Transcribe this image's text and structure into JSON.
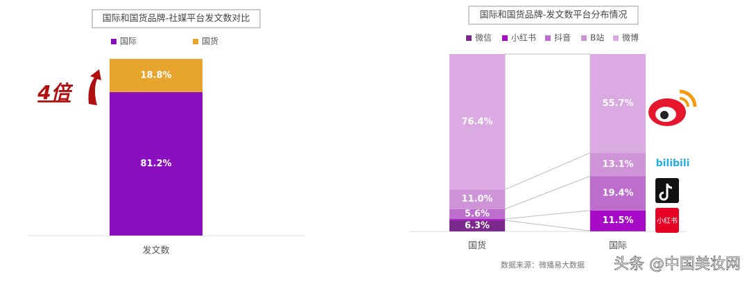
{
  "chart_data": [
    {
      "type": "stacked-bar",
      "title": "国际和国货品牌-社媒平台发文数对比",
      "categories": [
        "发文数"
      ],
      "series": [
        {
          "name": "国际",
          "color": "#8a0fbf",
          "values": [
            81.2
          ],
          "value_labels": [
            "81.2%"
          ]
        },
        {
          "name": "国货",
          "color": "#e8a52e",
          "values": [
            18.8
          ],
          "value_labels": [
            "18.8%"
          ]
        }
      ],
      "ylim": [
        0,
        100
      ],
      "annotation": "4倍"
    },
    {
      "type": "stacked-bar",
      "title": "国际和国货品牌-发文数平台分布情况",
      "categories": [
        "国货",
        "国际"
      ],
      "series": [
        {
          "name": "微信",
          "color": "#7b2a8b",
          "values": [
            6.3,
            0.3
          ],
          "value_labels": [
            "6.3%",
            null
          ]
        },
        {
          "name": "小红书",
          "color": "#a80bc8",
          "values": [
            0.7,
            11.5
          ],
          "value_labels": [
            null,
            "11.5%"
          ]
        },
        {
          "name": "抖音",
          "color": "#bd6dcc",
          "values": [
            5.6,
            19.4
          ],
          "value_labels": [
            "5.6%",
            "19.4%"
          ]
        },
        {
          "name": "B站",
          "color": "#cf94d8",
          "values": [
            11.0,
            13.1
          ],
          "value_labels": [
            "11.0%",
            "13.1%"
          ]
        },
        {
          "name": "微博",
          "color": "#dcaae3",
          "values": [
            76.4,
            55.7
          ],
          "value_labels": [
            "76.4%",
            "55.7%"
          ]
        }
      ],
      "ylim": [
        0,
        100
      ],
      "source": "数据来源：微播易大数据",
      "logos": [
        "bilibili",
        "小红书"
      ]
    }
  ],
  "watermark": "头条 @中国美妆网"
}
